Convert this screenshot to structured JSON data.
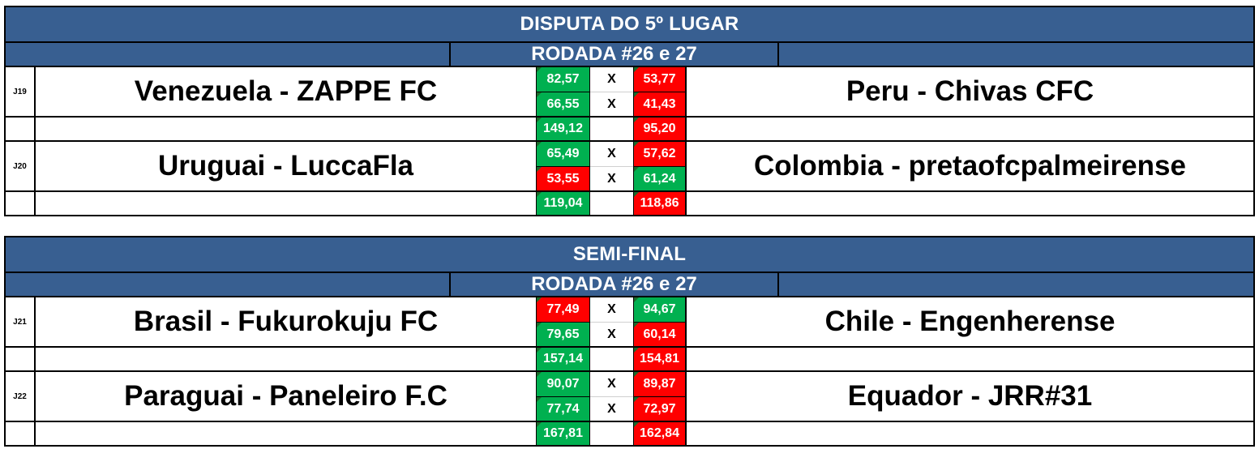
{
  "colors": {
    "header_bg": "#385f91",
    "win": "#00b050",
    "loss": "#ff0000"
  },
  "sections": [
    {
      "title": "DISPUTA DO 5º LUGAR",
      "round": "RODADA #26 e 27",
      "matches": [
        {
          "id": "J19",
          "home": "Venezuela - ZAPPE FC",
          "away": "Peru - Chivas CFC",
          "legs": [
            {
              "home_score": "82,57",
              "home_result": "green",
              "sep": "X",
              "away_score": "53,77",
              "away_result": "red"
            },
            {
              "home_score": "66,55",
              "home_result": "green",
              "sep": "X",
              "away_score": "41,43",
              "away_result": "red"
            }
          ],
          "total": {
            "home_score": "149,12",
            "home_result": "green",
            "away_score": "95,20",
            "away_result": "red"
          }
        },
        {
          "id": "J20",
          "home": "Uruguai - LuccaFla",
          "away": "Colombia - pretaofcpalmeirense",
          "legs": [
            {
              "home_score": "65,49",
              "home_result": "green",
              "sep": "X",
              "away_score": "57,62",
              "away_result": "red"
            },
            {
              "home_score": "53,55",
              "home_result": "red",
              "sep": "X",
              "away_score": "61,24",
              "away_result": "green"
            }
          ],
          "total": {
            "home_score": "119,04",
            "home_result": "green",
            "away_score": "118,86",
            "away_result": "red"
          }
        }
      ]
    },
    {
      "title": "SEMI-FINAL",
      "round": "RODADA #26 e 27",
      "matches": [
        {
          "id": "J21",
          "home": "Brasil - Fukurokuju FC",
          "away": "Chile - Engenherense",
          "legs": [
            {
              "home_score": "77,49",
              "home_result": "red",
              "sep": "X",
              "away_score": "94,67",
              "away_result": "green"
            },
            {
              "home_score": "79,65",
              "home_result": "green",
              "sep": "X",
              "away_score": "60,14",
              "away_result": "red"
            }
          ],
          "total": {
            "home_score": "157,14",
            "home_result": "green",
            "away_score": "154,81",
            "away_result": "red"
          }
        },
        {
          "id": "J22",
          "home": "Paraguai - Paneleiro F.C",
          "away": "Equador - JRR#31",
          "legs": [
            {
              "home_score": "90,07",
              "home_result": "green",
              "sep": "X",
              "away_score": "89,87",
              "away_result": "red"
            },
            {
              "home_score": "77,74",
              "home_result": "green",
              "sep": "X",
              "away_score": "72,97",
              "away_result": "red"
            }
          ],
          "total": {
            "home_score": "167,81",
            "home_result": "green",
            "away_score": "162,84",
            "away_result": "red"
          }
        }
      ]
    }
  ]
}
